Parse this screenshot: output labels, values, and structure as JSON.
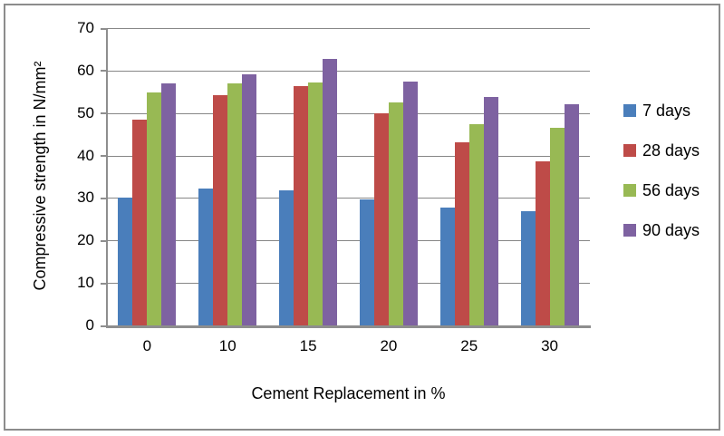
{
  "chart_data": {
    "type": "bar",
    "title": "",
    "xlabel": "Cement Replacement in %",
    "ylabel": "Compressive strength in N/mm²",
    "categories": [
      "0",
      "10",
      "15",
      "20",
      "25",
      "30"
    ],
    "series": [
      {
        "name": "7 days",
        "color": "#4a7ebb",
        "values": [
          30.2,
          32.3,
          31.8,
          29.7,
          27.8,
          27.0
        ]
      },
      {
        "name": "28 days",
        "color": "#be4b48",
        "values": [
          48.4,
          54.2,
          56.4,
          50.0,
          43.2,
          38.6
        ]
      },
      {
        "name": "56 days",
        "color": "#98b954",
        "values": [
          54.9,
          57.0,
          57.3,
          52.4,
          47.3,
          46.6
        ]
      },
      {
        "name": "90 days",
        "color": "#7e62a1",
        "values": [
          56.9,
          59.1,
          62.8,
          57.4,
          53.7,
          52.0
        ]
      }
    ],
    "ylim": [
      0,
      70
    ],
    "ytick_step": 10,
    "yticks": [
      "70",
      "60",
      "50",
      "40",
      "30",
      "20",
      "10",
      "0"
    ],
    "grid": true,
    "legend_position": "right"
  }
}
